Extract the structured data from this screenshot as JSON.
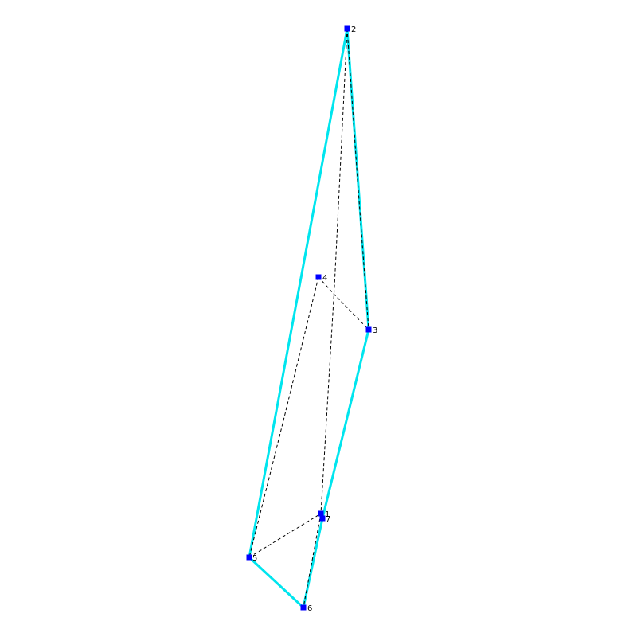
{
  "diagram": {
    "colors": {
      "hull": "#00e5ee",
      "internal": "#000000",
      "node": "#0000ff",
      "background": "#ffffff"
    },
    "nodes": [
      {
        "id": "1",
        "label": "1"
      },
      {
        "id": "2",
        "label": "2"
      },
      {
        "id": "3",
        "label": "3"
      },
      {
        "id": "4",
        "label": "4"
      },
      {
        "id": "5",
        "label": "5"
      },
      {
        "id": "6",
        "label": "6"
      },
      {
        "id": "7",
        "label": "7"
      }
    ],
    "hull_edges": [
      [
        "2",
        "3"
      ],
      [
        "3",
        "7"
      ],
      [
        "7",
        "6"
      ],
      [
        "6",
        "5"
      ],
      [
        "5",
        "2"
      ]
    ],
    "dashed_edges": [
      [
        "2",
        "1"
      ],
      [
        "2",
        "3"
      ],
      [
        "4",
        "3"
      ],
      [
        "4",
        "5"
      ],
      [
        "5",
        "1"
      ],
      [
        "1",
        "6"
      ]
    ]
  }
}
